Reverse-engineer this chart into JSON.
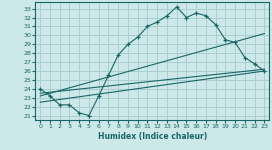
{
  "title": "",
  "xlabel": "Humidex (Indice chaleur)",
  "ylabel": "",
  "xlim": [
    -0.5,
    23.5
  ],
  "ylim": [
    20.5,
    33.8
  ],
  "yticks": [
    21,
    22,
    23,
    24,
    25,
    26,
    27,
    28,
    29,
    30,
    31,
    32,
    33
  ],
  "xticks": [
    0,
    1,
    2,
    3,
    4,
    5,
    6,
    7,
    8,
    9,
    10,
    11,
    12,
    13,
    14,
    15,
    16,
    17,
    18,
    19,
    20,
    21,
    22,
    23
  ],
  "bg_color": "#cce8e8",
  "grid_color": "#aacfcf",
  "line_color": "#1a6666",
  "main_line_x": [
    0,
    1,
    2,
    3,
    4,
    5,
    6,
    7,
    8,
    9,
    10,
    11,
    12,
    13,
    14,
    15,
    16,
    17,
    18,
    19,
    20,
    21,
    22,
    23
  ],
  "main_line_y": [
    24.0,
    23.2,
    22.2,
    22.2,
    21.3,
    21.0,
    23.2,
    25.5,
    27.8,
    29.0,
    29.8,
    31.0,
    31.5,
    32.2,
    33.2,
    32.0,
    32.5,
    32.2,
    31.2,
    29.5,
    29.2,
    27.5,
    26.8,
    26.0
  ],
  "trend1_x": [
    0,
    23
  ],
  "trend1_y": [
    23.5,
    26.2
  ],
  "trend2_x": [
    0,
    23
  ],
  "trend2_y": [
    23.2,
    30.2
  ],
  "trend3_x": [
    0,
    23
  ],
  "trend3_y": [
    22.5,
    26.0
  ]
}
